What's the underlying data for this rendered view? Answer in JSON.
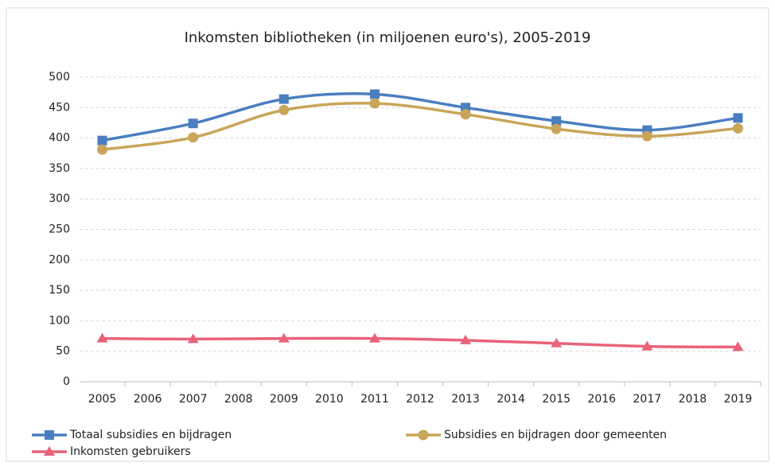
{
  "chart_data": {
    "type": "line",
    "title": "Inkomsten bibliotheken (in miljoenen euro's), 2005-2019",
    "x": [
      2005,
      2007,
      2009,
      2011,
      2013,
      2015,
      2017,
      2019
    ],
    "xlim": [
      2004.5,
      2019.5
    ],
    "xticks": [
      2005,
      2006,
      2007,
      2008,
      2009,
      2010,
      2011,
      2012,
      2013,
      2014,
      2015,
      2016,
      2017,
      2018,
      2019
    ],
    "ylim": [
      0,
      500
    ],
    "yticks": [
      0,
      50,
      100,
      150,
      200,
      250,
      300,
      350,
      400,
      450,
      500
    ],
    "grid": true,
    "smooth": true,
    "legend": "bottom",
    "series": [
      {
        "name": "Totaal subsidies en bijdragen",
        "color": "#4a7ebf",
        "marker": "square",
        "values": [
          396,
          424,
          464,
          472,
          450,
          428,
          413,
          433
        ]
      },
      {
        "name": "Subsidies en bijdragen door gemeenten",
        "color": "#c9a55a",
        "marker": "circle",
        "values": [
          381,
          401,
          446,
          457,
          439,
          415,
          403,
          416
        ]
      },
      {
        "name": "Inkomsten gebruikers",
        "color": "#e8637a",
        "marker": "triangle",
        "values": [
          71,
          70,
          71,
          71,
          68,
          63,
          58,
          57
        ]
      }
    ]
  }
}
